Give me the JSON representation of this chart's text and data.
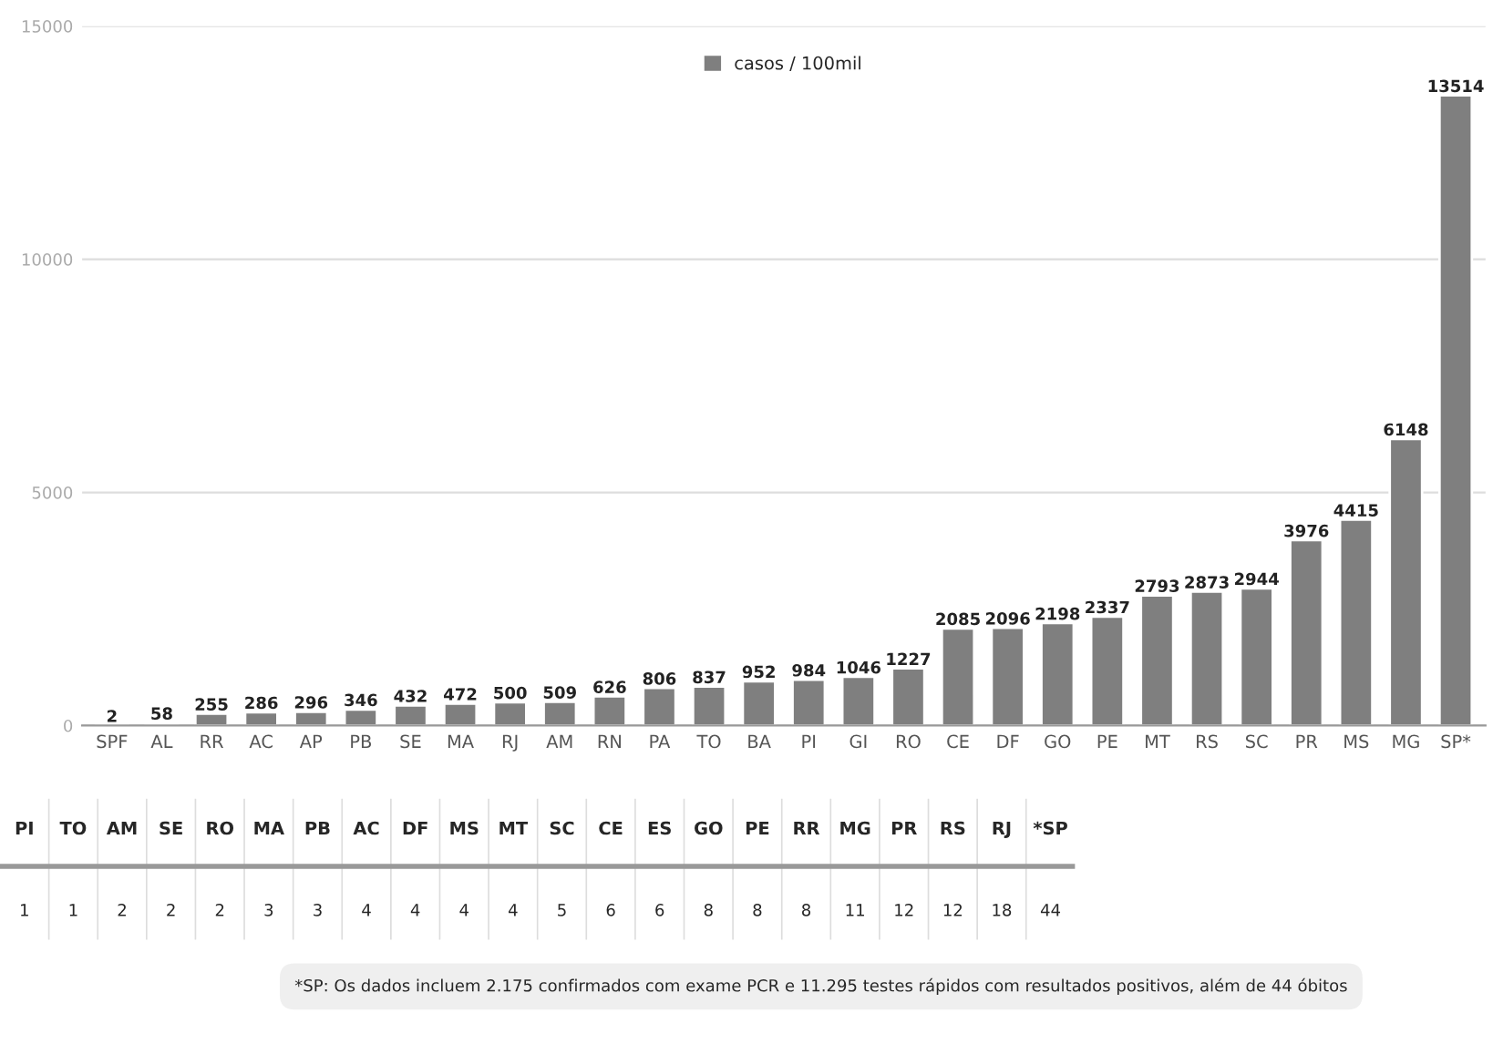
{
  "chart_data": [
    {
      "type": "bar",
      "categories": [
        "SPF",
        "AL",
        "RR",
        "AC",
        "AP",
        "PB",
        "SE",
        "MA",
        "RJ",
        "AM",
        "RN",
        "PA",
        "TO",
        "BA",
        "PI",
        "GI",
        "RO",
        "CE",
        "DF",
        "GO",
        "PE",
        "MT",
        "RS",
        "SC",
        "PR",
        "MS",
        "MG",
        "SP*"
      ],
      "series": [
        {
          "name": "casos / 100mil",
          "color": "#7f7f7f",
          "values": [
            2,
            58,
            255,
            286,
            296,
            346,
            432,
            472,
            500,
            509,
            626,
            806,
            837,
            952,
            984,
            1046,
            1227,
            2085,
            2096,
            2198,
            2337,
            2793,
            2873,
            2944,
            3976,
            4415,
            6148,
            13514
          ]
        }
      ],
      "ylim": [
        0,
        15000
      ],
      "yticks": [
        0,
        5000,
        10000,
        15000
      ],
      "grid": "y",
      "legend": "top",
      "data_labels": true
    },
    {
      "type": "other",
      "categories": [
        "PI",
        "TO",
        "AM",
        "SE",
        "RO",
        "MA",
        "PB",
        "AC",
        "DF",
        "MS",
        "MT",
        "SC",
        "CE",
        "ES",
        "GO",
        "PE",
        "RR",
        "MG",
        "PR",
        "RS",
        "RJ",
        "*SP"
      ],
      "values": [
        1,
        1,
        2,
        2,
        2,
        3,
        3,
        4,
        4,
        4,
        4,
        5,
        6,
        6,
        8,
        8,
        8,
        11,
        12,
        12,
        18,
        44
      ],
      "data_labels": true,
      "annotations": [
        "*SP: Os dados incluem 2.175 confirmados com exame PCR e 11.295 testes rápidos com resultados positivos, além de 44 óbitos"
      ]
    }
  ]
}
